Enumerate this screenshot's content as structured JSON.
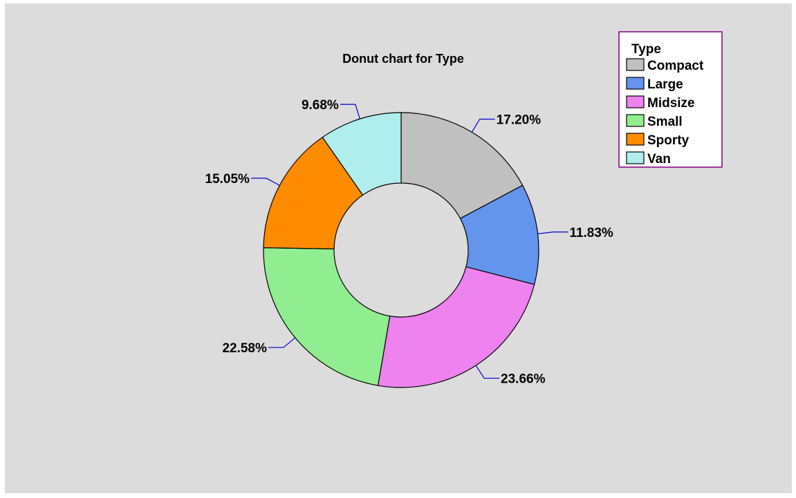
{
  "chart_data": {
    "type": "pie",
    "title": "Donut chart for Type",
    "categories": [
      "Compact",
      "Large",
      "Midsize",
      "Small",
      "Sporty",
      "Van"
    ],
    "values": [
      17.2,
      11.83,
      23.66,
      22.58,
      15.05,
      9.68
    ],
    "labels": [
      "17.20%",
      "11.83%",
      "23.66%",
      "22.58%",
      "15.05%",
      "9.68%"
    ],
    "colors": [
      "#c0c0c0",
      "#6495ed",
      "#ee82ee",
      "#90ee90",
      "#ff8c00",
      "#b0eeee"
    ],
    "legend": {
      "title": "Type",
      "position": "top-right"
    },
    "donut": true,
    "start_angle": "top, clockwise"
  },
  "colors": {
    "panel_background": "#dcdcdc",
    "leader_lines": "#0000cd",
    "legend_border": "#800080",
    "legend_background": "#ffffff"
  }
}
